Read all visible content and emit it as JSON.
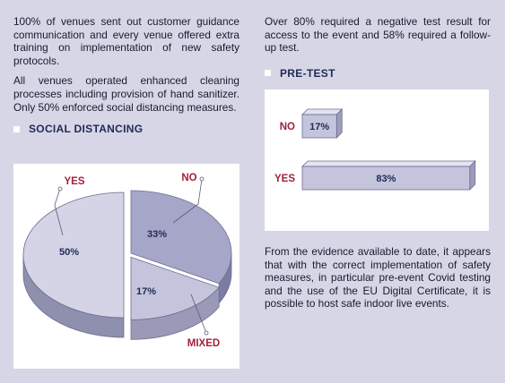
{
  "left_column": {
    "para1": "100% of venues sent out customer guidance communication and every venue offered extra training on implementation of new safety protocols.",
    "para2": "All venues operated enhanced cleaning processes including provision of hand sanitizer. Only 50% enforced social distancing measures.",
    "section_title": "SOCIAL DISTANCING"
  },
  "right_column": {
    "para1": "Over 80% required a negative test result for access to the event and 58% required a follow-up test.",
    "section_title": "PRE-TEST",
    "para2": "From the evidence available to date, it appears that with the correct implementation of safety measures, in particular pre-event Covid testing and the use of the EU Digital Certificate, it is possible to host safe indoor live events."
  },
  "colors": {
    "background": "#d6d6e6",
    "accent_red": "#a3203b",
    "navy": "#1f2a55",
    "slice_light": "#d4d4e6",
    "slice_mid": "#c4c4dc",
    "slice_dark": "#a6a6c8"
  },
  "chart_data": [
    {
      "type": "pie",
      "categories": [
        "YES",
        "NO",
        "MIXED"
      ],
      "values": [
        50,
        33,
        17
      ],
      "value_labels": [
        "50%",
        "33%",
        "17%"
      ]
    },
    {
      "type": "bar",
      "orientation": "horizontal",
      "categories": [
        "NO",
        "YES"
      ],
      "values": [
        17,
        83
      ],
      "value_labels": [
        "17%",
        "83%"
      ]
    }
  ]
}
